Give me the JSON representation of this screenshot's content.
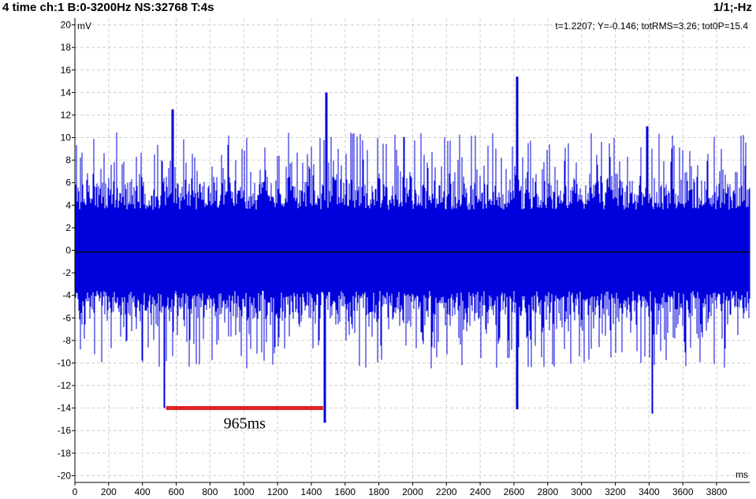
{
  "header": {
    "left_title": "4 time ch:1 B:0-3200Hz NS:32768 T:4s",
    "right_title": "1/1;-Hz"
  },
  "chart_data": {
    "type": "line",
    "x_unit": "ms",
    "y_unit": "mV",
    "readout": "t=1.2207; Y=-0.146; totRMS=3.26; tot0P=15.4",
    "xlim": [
      0,
      3996
    ],
    "ylim": [
      -20.6,
      20.6
    ],
    "x_ticks": [
      0,
      200,
      400,
      600,
      800,
      1000,
      1200,
      1400,
      1600,
      1800,
      2000,
      2200,
      2400,
      2600,
      2800,
      3000,
      3200,
      3400,
      3600,
      3800
    ],
    "y_ticks": [
      20,
      18,
      16,
      14,
      12,
      10,
      8,
      6,
      4,
      2,
      0,
      -2,
      -4,
      -6,
      -8,
      -10,
      -12,
      -14,
      -16,
      -18,
      -20
    ],
    "grid": true,
    "series": [
      {
        "color": "#0000dd",
        "description_peaks": [
          {
            "x": 530,
            "y": -14.0
          },
          {
            "x": 580,
            "y": 12.5
          },
          {
            "x": 1490,
            "y": 14.0
          },
          {
            "x": 1480,
            "y": -15.3
          },
          {
            "x": 2620,
            "y": 15.4
          },
          {
            "x": 2620,
            "y": -14.1
          },
          {
            "x": 3420,
            "y": -14.5
          },
          {
            "x": 3390,
            "y": 11.0
          }
        ]
      }
    ],
    "baseline": {
      "y": -0.146,
      "color": "#000000"
    },
    "annotation": {
      "text": "965ms",
      "x_start": 540,
      "x_end": 1470,
      "y": -14.0,
      "color": "#e02020"
    }
  }
}
